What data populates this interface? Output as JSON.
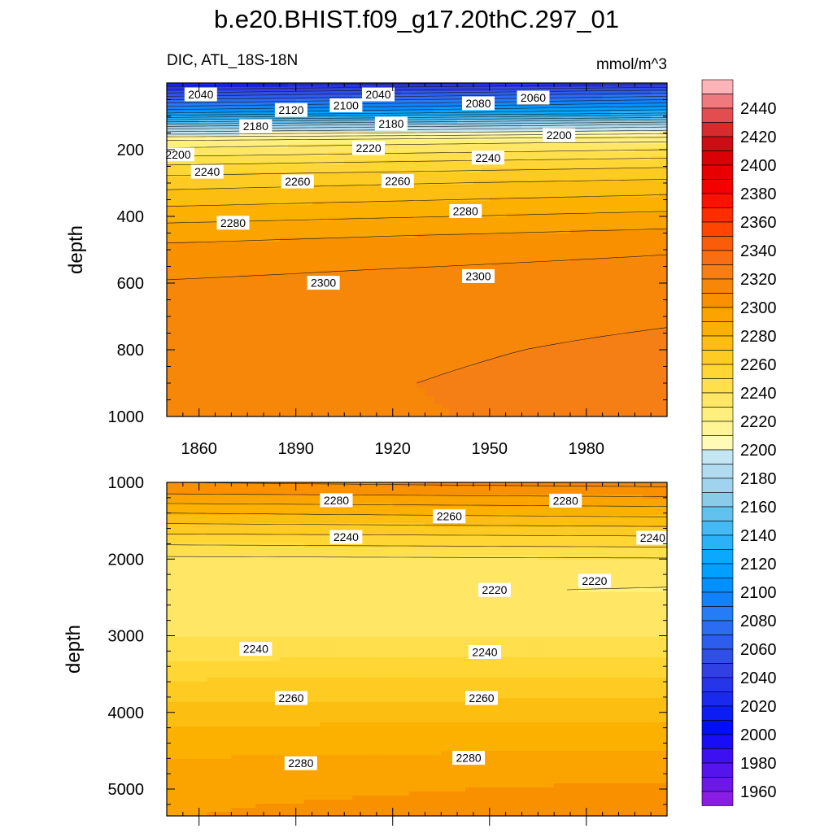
{
  "header": {
    "title": "b.e20.BHIST.f09_g17.20thC.297_01",
    "left_subtitle": "DIC, ATL_18S-18N",
    "right_subtitle": "mmol/m^3"
  },
  "chart_data": [
    {
      "type": "contour",
      "panel": "upper",
      "variable": "DIC",
      "region": "ATL_18S-18N",
      "units": "mmol/m^3",
      "xlabel": "",
      "ylabel": "depth",
      "xlim": [
        1850,
        2005
      ],
      "ylim": [
        1000,
        0
      ],
      "x_ticks": [
        1860,
        1890,
        1920,
        1950,
        1980
      ],
      "y_ticks": [
        200,
        400,
        600,
        800,
        1000
      ],
      "levels": [
        2020,
        2030,
        2040,
        2050,
        2060,
        2070,
        2080,
        2090,
        2100,
        2110,
        2120,
        2130,
        2140,
        2150,
        2160,
        2170,
        2180,
        2190,
        2200,
        2210,
        2220,
        2230,
        2240,
        2250,
        2260,
        2270,
        2280,
        2290,
        2300,
        2310
      ],
      "profile": {
        "start_year": 1850,
        "end_year": 2005,
        "depth": [
          0,
          30,
          60,
          90,
          110,
          130,
          150,
          165,
          180,
          200,
          220,
          240,
          270,
          300,
          340,
          380,
          420,
          460,
          500,
          560,
          620,
          700,
          800,
          900,
          1000
        ],
        "dic_start": [
          2010,
          2040,
          2070,
          2100,
          2130,
          2160,
          2185,
          2205,
          2215,
          2222,
          2230,
          2238,
          2248,
          2256,
          2264,
          2272,
          2280,
          2287,
          2293,
          2298,
          2302,
          2304,
          2305,
          2306,
          2306
        ],
        "dic_end": [
          2025,
          2060,
          2090,
          2120,
          2150,
          2178,
          2198,
          2212,
          2222,
          2230,
          2238,
          2246,
          2255,
          2263,
          2271,
          2279,
          2287,
          2294,
          2299,
          2303,
          2306,
          2309,
          2312,
          2314,
          2313
        ]
      },
      "contour_labels": [
        {
          "text": "2040",
          "year": 1856,
          "depth": 45
        },
        {
          "text": "2120",
          "year": 1884,
          "depth": 92
        },
        {
          "text": "2100",
          "year": 1901,
          "depth": 78
        },
        {
          "text": "2040",
          "year": 1911,
          "depth": 45
        },
        {
          "text": "2080",
          "year": 1942,
          "depth": 72
        },
        {
          "text": "2060",
          "year": 1959,
          "depth": 55
        },
        {
          "text": "2180",
          "year": 1873,
          "depth": 140
        },
        {
          "text": "2180",
          "year": 1915,
          "depth": 133
        },
        {
          "text": "2200",
          "year": 1849,
          "depth": 225
        },
        {
          "text": "2200",
          "year": 1967,
          "depth": 167
        },
        {
          "text": "2220",
          "year": 1908,
          "depth": 206
        },
        {
          "text": "2240",
          "year": 1858,
          "depth": 277
        },
        {
          "text": "2240",
          "year": 1945,
          "depth": 235
        },
        {
          "text": "2260",
          "year": 1886,
          "depth": 306
        },
        {
          "text": "2260",
          "year": 1917,
          "depth": 305
        },
        {
          "text": "2280",
          "year": 1866,
          "depth": 430
        },
        {
          "text": "2280",
          "year": 1938,
          "depth": 395
        },
        {
          "text": "2300",
          "year": 1894,
          "depth": 610
        },
        {
          "text": "2300",
          "year": 1942,
          "depth": 590
        }
      ]
    },
    {
      "type": "contour",
      "panel": "lower",
      "variable": "DIC",
      "xlabel": "",
      "ylabel": "depth",
      "xlim": [
        1850,
        2005
      ],
      "ylim": [
        5350,
        1000
      ],
      "y_ticks": [
        1000,
        2000,
        3000,
        4000,
        5000
      ],
      "levels": [
        2220,
        2230,
        2240,
        2250,
        2260,
        2270,
        2280,
        2290,
        2300
      ],
      "profile": {
        "start_year": 1850,
        "end_year": 2005,
        "depth": [
          1000,
          1100,
          1200,
          1300,
          1400,
          1500,
          1600,
          1700,
          1800,
          1900,
          2000,
          2200,
          2400,
          2600,
          2800,
          3000,
          3200,
          3400,
          3600,
          3800,
          4000,
          4200,
          4400,
          4600,
          4800,
          5000,
          5200,
          5400
        ],
        "dic_start": [
          2300,
          2294,
          2286,
          2278,
          2270,
          2263,
          2255,
          2248,
          2241,
          2234,
          2228,
          2226,
          2224,
          2223,
          2224,
          2229,
          2236,
          2243,
          2251,
          2258,
          2265,
          2271,
          2276,
          2280,
          2284,
          2287,
          2289,
          2290
        ],
        "dic_end": [
          2304,
          2297,
          2289,
          2281,
          2274,
          2266,
          2258,
          2250,
          2243,
          2236,
          2229,
          2225,
          2219,
          2224,
          2226,
          2230,
          2237,
          2244,
          2252,
          2259,
          2266,
          2272,
          2278,
          2283,
          2288,
          2292,
          2294,
          2295
        ]
      },
      "contour_labels": [
        {
          "text": "2280",
          "year": 1898,
          "depth": 1280
        },
        {
          "text": "2280",
          "year": 1969,
          "depth": 1285
        },
        {
          "text": "2260",
          "year": 1933,
          "depth": 1490
        },
        {
          "text": "2240",
          "year": 1901,
          "depth": 1760
        },
        {
          "text": "2240",
          "year": 1996,
          "depth": 1770
        },
        {
          "text": "2220",
          "year": 1947,
          "depth": 2450
        },
        {
          "text": "2220",
          "year": 1978,
          "depth": 2330
        },
        {
          "text": "2240",
          "year": 1873,
          "depth": 3220
        },
        {
          "text": "2240",
          "year": 1944,
          "depth": 3260
        },
        {
          "text": "2260",
          "year": 1884,
          "depth": 3860
        },
        {
          "text": "2260",
          "year": 1943,
          "depth": 3860
        },
        {
          "text": "2280",
          "year": 1887,
          "depth": 4710
        },
        {
          "text": "2280",
          "year": 1939,
          "depth": 4640
        }
      ]
    }
  ],
  "colorbar": {
    "labels": [
      2440,
      2420,
      2400,
      2380,
      2360,
      2340,
      2320,
      2300,
      2280,
      2260,
      2240,
      2220,
      2200,
      2180,
      2160,
      2140,
      2120,
      2100,
      2080,
      2060,
      2040,
      2020,
      2000,
      1980,
      1960
    ],
    "colors_top_to_bottom": [
      "#fbb5b8",
      "#ee7a7e",
      "#e44d50",
      "#d72b2e",
      "#ca0e13",
      "#da0005",
      "#e80000",
      "#f40000",
      "#ff1100",
      "#ff2c00",
      "#ff4500",
      "#fb5c0a",
      "#f76f12",
      "#f57f14",
      "#f78708",
      "#f99000",
      "#fba400",
      "#fcb000",
      "#fcbf11",
      "#fecb23",
      "#ffd633",
      "#ffdf4b",
      "#ffe664",
      "#fff07d",
      "#fff594",
      "#fffab6",
      "#c4e6f3",
      "#b1dcf0",
      "#9fd3ee",
      "#8acbea",
      "#63c1ee",
      "#45b9f3",
      "#2bb1f8",
      "#0aa9fd",
      "#00a0ff",
      "#0090ff",
      "#1181fc",
      "#267bf7",
      "#2b6cf2",
      "#2c5ded",
      "#2f4fe8",
      "#3040e2",
      "#2735e8",
      "#1929ed",
      "#0b1df2",
      "#000ff7",
      "#180df6",
      "#3d10f1",
      "#5614ec",
      "#6e18e8",
      "#8a1de3"
    ]
  }
}
